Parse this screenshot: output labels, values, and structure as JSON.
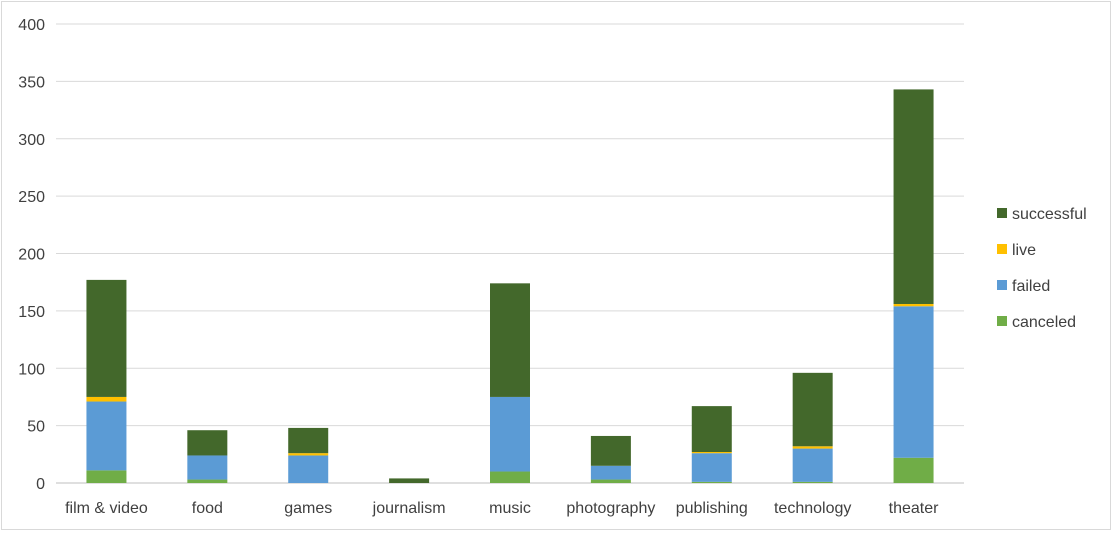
{
  "chart_data": {
    "type": "bar",
    "stacked": true,
    "categories": [
      "film & video",
      "food",
      "games",
      "journalism",
      "music",
      "photography",
      "publishing",
      "technology",
      "theater"
    ],
    "series": [
      {
        "name": "canceled",
        "color": "#70ad47",
        "values": [
          11,
          3,
          0,
          0,
          10,
          3,
          1,
          1,
          22
        ]
      },
      {
        "name": "failed",
        "color": "#5b9bd5",
        "values": [
          60,
          21,
          24,
          0,
          65,
          12,
          25,
          29,
          132
        ]
      },
      {
        "name": "live",
        "color": "#ffc000",
        "values": [
          4,
          0,
          2,
          0,
          0,
          0,
          1,
          2,
          2
        ]
      },
      {
        "name": "successful",
        "color": "#43682b",
        "values": [
          102,
          22,
          22,
          4,
          99,
          26,
          40,
          64,
          187
        ]
      }
    ],
    "ylim": [
      0,
      400
    ],
    "yticks": [
      0,
      50,
      100,
      150,
      200,
      250,
      300,
      350,
      400
    ],
    "grid": true,
    "legend_position": "right",
    "legend_order": [
      "successful",
      "live",
      "failed",
      "canceled"
    ],
    "title": "",
    "xlabel": "",
    "ylabel": ""
  }
}
